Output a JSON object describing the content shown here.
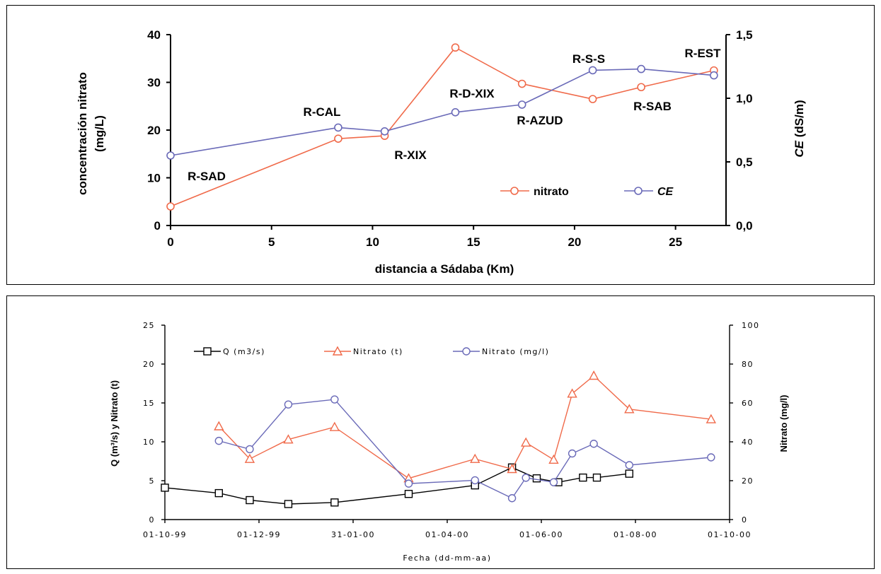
{
  "chart_data": [
    {
      "type": "line",
      "xlabel": "distancia a Sádaba (Km)",
      "ylabel_line1": "concentración nitrato",
      "ylabel_line2": "(mg/L)",
      "y2label_italic": "CE",
      "y2label_rest": "(dS/m)",
      "xlim": [
        0,
        27.5
      ],
      "ylim": [
        0,
        40
      ],
      "y2lim": [
        0,
        1.5
      ],
      "xticks": [
        "0",
        "5",
        "10",
        "15",
        "20",
        "25"
      ],
      "yticks": [
        "0",
        "10",
        "20",
        "30",
        "40"
      ],
      "y2ticks": [
        "0,0",
        "0,5",
        "1,0",
        "1,5"
      ],
      "grid": false,
      "legend_position": "bottom-right",
      "series": [
        {
          "name": "nitrato",
          "color": "#f06a4a",
          "axis": "left",
          "x": [
            0,
            8.3,
            10.6,
            14.1,
            17.4,
            20.9,
            23.3,
            26.9
          ],
          "y": [
            4,
            18.2,
            18.8,
            37.3,
            29.7,
            26.5,
            29,
            32.5
          ]
        },
        {
          "name": "CE",
          "name_italic": true,
          "color": "#6a6ab8",
          "axis": "right",
          "x": [
            0,
            8.3,
            10.6,
            14.1,
            17.4,
            20.9,
            23.3,
            26.9
          ],
          "y": [
            0.55,
            0.77,
            0.74,
            0.89,
            0.95,
            1.22,
            1.23,
            1.18
          ]
        }
      ],
      "point_labels": [
        "R-SAD",
        "R-CAL",
        "R-XIX",
        "R-D-XIX",
        "R-AZUD",
        "R-S-S",
        "R-SAB",
        "R-EST"
      ]
    },
    {
      "type": "line",
      "xlabel": "Fecha (dd-mm-aa)",
      "ylabel": "Q (m³/s) y Nitrato (t)",
      "y2label": "Nitrato (mg/l)",
      "xticks": [
        "01-10-99",
        "01-12-99",
        "31-01-00",
        "01-04-00",
        "01-06-00",
        "01-08-00",
        "01-10-00"
      ],
      "xtick_days": [
        0,
        61,
        122,
        183,
        244,
        305,
        366
      ],
      "yticks": [
        "0",
        "5",
        "10",
        "15",
        "20",
        "25"
      ],
      "y2ticks": [
        "0",
        "20",
        "40",
        "60",
        "80",
        "100"
      ],
      "ylim": [
        0,
        25
      ],
      "y2lim": [
        0,
        100
      ],
      "grid": false,
      "legend_position": "top-left",
      "series": [
        {
          "name": "Q (m3/s)",
          "color": "#000000",
          "marker": "square",
          "axis": "left",
          "x": [
            "01-10-99",
            "05-11-99",
            "25-11-99",
            "20-12-99",
            "19-01-00",
            "07-03-00",
            "19-04-00",
            "13-05-00",
            "29-05-00",
            "12-06-00",
            "28-06-00",
            "07-07-00",
            "28-07-00"
          ],
          "y": [
            4.1,
            3.4,
            2.5,
            2.0,
            2.2,
            3.3,
            4.4,
            6.7,
            5.3,
            4.8,
            5.4,
            5.4,
            5.9
          ]
        },
        {
          "name": "Nitrato (t)",
          "color": "#f06a4a",
          "marker": "triangle",
          "axis": "left",
          "x": [
            "05-11-99",
            "25-11-99",
            "20-12-99",
            "19-01-00",
            "07-03-00",
            "19-04-00",
            "13-05-00",
            "22-05-00",
            "09-06-00",
            "21-06-00",
            "05-07-00",
            "28-07-00",
            "19-09-00"
          ],
          "y": [
            12,
            7.8,
            10.3,
            11.9,
            5.3,
            7.8,
            6.5,
            9.9,
            7.7,
            16.2,
            18.5,
            14.2,
            12.9
          ]
        },
        {
          "name": "Nitrato (mg/l)",
          "color": "#6a6ab8",
          "marker": "circle",
          "axis": "right",
          "x": [
            "05-11-99",
            "25-11-99",
            "20-12-99",
            "19-01-00",
            "07-03-00",
            "19-04-00",
            "13-05-00",
            "22-05-00",
            "09-06-00",
            "21-06-00",
            "05-07-00",
            "28-07-00",
            "19-09-00"
          ],
          "y": [
            40.5,
            36.2,
            59.2,
            61.8,
            18.5,
            20.2,
            11,
            21.5,
            19.2,
            34,
            39,
            28,
            32
          ]
        }
      ]
    }
  ]
}
